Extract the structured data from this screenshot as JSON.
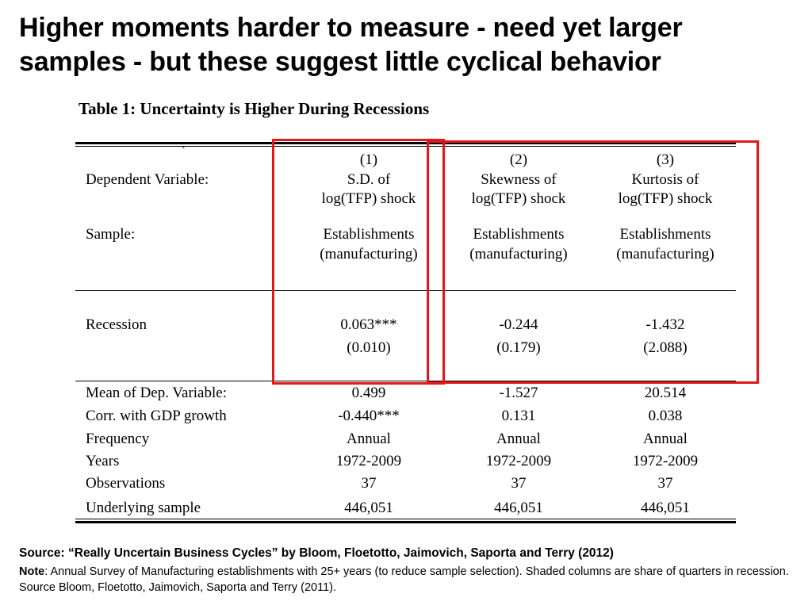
{
  "slide": {
    "title_line1": "Higher moments harder to measure - need yet larger",
    "title_line2": "samples - but these suggest little cyclical behavior"
  },
  "table": {
    "title": "Table 1: Uncertainty is Higher During Recessions",
    "stray_mark": "`",
    "labels": {
      "dependent_variable": "Dependent Variable:",
      "sample": "Sample:",
      "recession": "Recession",
      "mean_dep": "Mean of Dep. Variable:",
      "corr_gdp": "Corr. with GDP growth",
      "frequency": "Frequency",
      "years": "Years",
      "observations": "Observations",
      "underlying_sample": "Underlying sample"
    },
    "columns": [
      {
        "number": "(1)",
        "dep_line1": "S.D. of",
        "dep_line2": "log(TFP) shock",
        "sample_line1": "Establishments",
        "sample_line2": "(manufacturing)",
        "recession_coef": "0.063***",
        "recession_se": "(0.010)",
        "mean_dep": "0.499",
        "corr_gdp": "-0.440***",
        "frequency": "Annual",
        "years": "1972-2009",
        "observations": "37",
        "underlying_sample": "446,051"
      },
      {
        "number": "(2)",
        "dep_line1": "Skewness of",
        "dep_line2": "log(TFP) shock",
        "sample_line1": "Establishments",
        "sample_line2": "(manufacturing)",
        "recession_coef": "-0.244",
        "recession_se": "(0.179)",
        "mean_dep": "-1.527",
        "corr_gdp": "0.131",
        "frequency": "Annual",
        "years": "1972-2009",
        "observations": "37",
        "underlying_sample": "446,051"
      },
      {
        "number": "(3)",
        "dep_line1": "Kurtosis of",
        "dep_line2": "log(TFP) shock",
        "sample_line1": "Establishments",
        "sample_line2": "(manufacturing)",
        "recession_coef": "-1.432",
        "recession_se": "(2.088)",
        "mean_dep": "20.514",
        "corr_gdp": "0.038",
        "frequency": "Annual",
        "years": "1972-2009",
        "observations": "37",
        "underlying_sample": "446,051"
      }
    ]
  },
  "highlight_color": "#e0191a",
  "footer": {
    "source": "Source: “Really Uncertain Business Cycles” by Bloom, Floetotto, Jaimovich, Saporta and Terry (2012)",
    "note_label": "Note",
    "note_text": ": Annual Survey of Manufacturing establishments with 25+ years (to reduce sample selection). Shaded columns are share of quarters in recession. Source Bloom, Floetotto, Jaimovich, Saporta and Terry (2011)."
  }
}
